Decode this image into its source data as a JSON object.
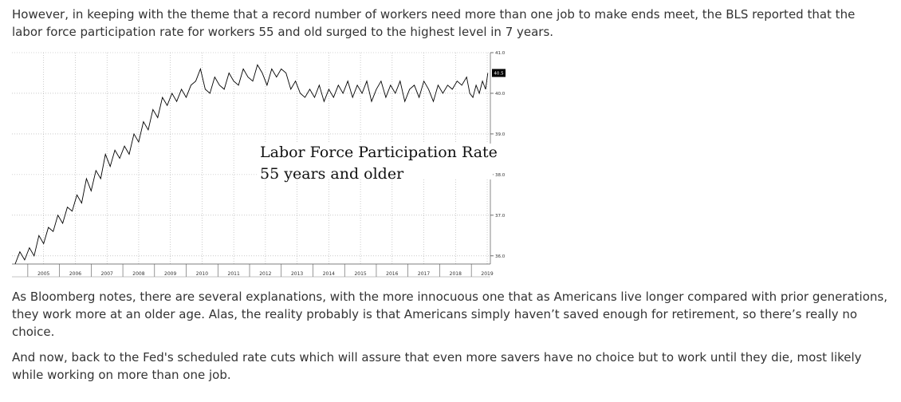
{
  "article": {
    "paragraph_1": "However, in keeping with the theme that a record number of workers need more than one job to make ends meet, the BLS reported that the labor force participation rate for workers 55 and old surged to the highest level in 7 years.",
    "paragraph_2": "As Bloomberg notes, there are several explanations, with the more innocuous one that as Americans live longer compared with prior generations, they work more at an older age. Alas, the reality probably is that Americans simply haven’t saved enough for retirement, so there’s really no choice.",
    "paragraph_3": "And now, back to the Fed's scheduled rate cuts which will assure that even more savers have no choice but to work until they die, most likely while working on more than one job."
  },
  "chart_data": {
    "type": "line",
    "title": "Labor Force Participation Rate",
    "subtitle": "55 years and older",
    "xlabel": "",
    "ylabel": "",
    "x_ticks": [
      "2005",
      "2006",
      "2007",
      "2008",
      "2009",
      "2010",
      "2011",
      "2012",
      "2013",
      "2014",
      "2015",
      "2016",
      "2017",
      "2018",
      "2019"
    ],
    "y_ticks": [
      "36.0",
      "37.0",
      "38.0",
      "39.0",
      "40.0",
      "41.0"
    ],
    "ylim": [
      35.8,
      41.0
    ],
    "xlim": [
      2004.5,
      2019.6
    ],
    "last_value_label": "40.5",
    "grid": true,
    "colors": {
      "line": "#000000",
      "grid": "#aaaaaa",
      "badge": "#000000",
      "badge_text": "#ffffff"
    },
    "series": [
      {
        "values": [
          [
            2004.6,
            35.8
          ],
          [
            2004.75,
            36.1
          ],
          [
            2004.9,
            35.9
          ],
          [
            2005.05,
            36.2
          ],
          [
            2005.2,
            36.0
          ],
          [
            2005.35,
            36.5
          ],
          [
            2005.5,
            36.3
          ],
          [
            2005.65,
            36.7
          ],
          [
            2005.8,
            36.6
          ],
          [
            2005.95,
            37.0
          ],
          [
            2006.1,
            36.8
          ],
          [
            2006.25,
            37.2
          ],
          [
            2006.4,
            37.1
          ],
          [
            2006.55,
            37.5
          ],
          [
            2006.7,
            37.3
          ],
          [
            2006.85,
            37.9
          ],
          [
            2007.0,
            37.6
          ],
          [
            2007.15,
            38.1
          ],
          [
            2007.3,
            37.9
          ],
          [
            2007.45,
            38.5
          ],
          [
            2007.6,
            38.2
          ],
          [
            2007.75,
            38.6
          ],
          [
            2007.9,
            38.4
          ],
          [
            2008.05,
            38.7
          ],
          [
            2008.2,
            38.5
          ],
          [
            2008.35,
            39.0
          ],
          [
            2008.5,
            38.8
          ],
          [
            2008.65,
            39.3
          ],
          [
            2008.8,
            39.1
          ],
          [
            2008.95,
            39.6
          ],
          [
            2009.1,
            39.4
          ],
          [
            2009.25,
            39.9
          ],
          [
            2009.4,
            39.7
          ],
          [
            2009.55,
            40.0
          ],
          [
            2009.7,
            39.8
          ],
          [
            2009.85,
            40.1
          ],
          [
            2010.0,
            39.9
          ],
          [
            2010.15,
            40.2
          ],
          [
            2010.3,
            40.3
          ],
          [
            2010.45,
            40.6
          ],
          [
            2010.6,
            40.1
          ],
          [
            2010.75,
            40.0
          ],
          [
            2010.9,
            40.4
          ],
          [
            2011.05,
            40.2
          ],
          [
            2011.2,
            40.1
          ],
          [
            2011.35,
            40.5
          ],
          [
            2011.5,
            40.3
          ],
          [
            2011.65,
            40.2
          ],
          [
            2011.8,
            40.6
          ],
          [
            2011.95,
            40.4
          ],
          [
            2012.1,
            40.3
          ],
          [
            2012.25,
            40.7
          ],
          [
            2012.4,
            40.5
          ],
          [
            2012.55,
            40.2
          ],
          [
            2012.7,
            40.6
          ],
          [
            2012.85,
            40.4
          ],
          [
            2013.0,
            40.6
          ],
          [
            2013.15,
            40.5
          ],
          [
            2013.3,
            40.1
          ],
          [
            2013.45,
            40.3
          ],
          [
            2013.6,
            40.0
          ],
          [
            2013.75,
            39.9
          ],
          [
            2013.9,
            40.1
          ],
          [
            2014.05,
            39.9
          ],
          [
            2014.2,
            40.2
          ],
          [
            2014.35,
            39.8
          ],
          [
            2014.5,
            40.1
          ],
          [
            2014.65,
            39.9
          ],
          [
            2014.8,
            40.2
          ],
          [
            2014.95,
            40.0
          ],
          [
            2015.1,
            40.3
          ],
          [
            2015.25,
            39.9
          ],
          [
            2015.4,
            40.2
          ],
          [
            2015.55,
            40.0
          ],
          [
            2015.7,
            40.3
          ],
          [
            2015.85,
            39.8
          ],
          [
            2016.0,
            40.1
          ],
          [
            2016.15,
            40.3
          ],
          [
            2016.3,
            39.9
          ],
          [
            2016.45,
            40.2
          ],
          [
            2016.6,
            40.0
          ],
          [
            2016.75,
            40.3
          ],
          [
            2016.9,
            39.8
          ],
          [
            2017.05,
            40.1
          ],
          [
            2017.2,
            40.2
          ],
          [
            2017.35,
            39.9
          ],
          [
            2017.5,
            40.3
          ],
          [
            2017.65,
            40.1
          ],
          [
            2017.8,
            39.8
          ],
          [
            2017.95,
            40.2
          ],
          [
            2018.1,
            40.0
          ],
          [
            2018.25,
            40.2
          ],
          [
            2018.4,
            40.1
          ],
          [
            2018.55,
            40.3
          ],
          [
            2018.7,
            40.2
          ],
          [
            2018.85,
            40.4
          ],
          [
            2018.95,
            40.0
          ],
          [
            2019.05,
            39.9
          ],
          [
            2019.15,
            40.2
          ],
          [
            2019.25,
            40.0
          ],
          [
            2019.35,
            40.3
          ],
          [
            2019.45,
            40.1
          ],
          [
            2019.52,
            40.5
          ]
        ]
      }
    ]
  }
}
